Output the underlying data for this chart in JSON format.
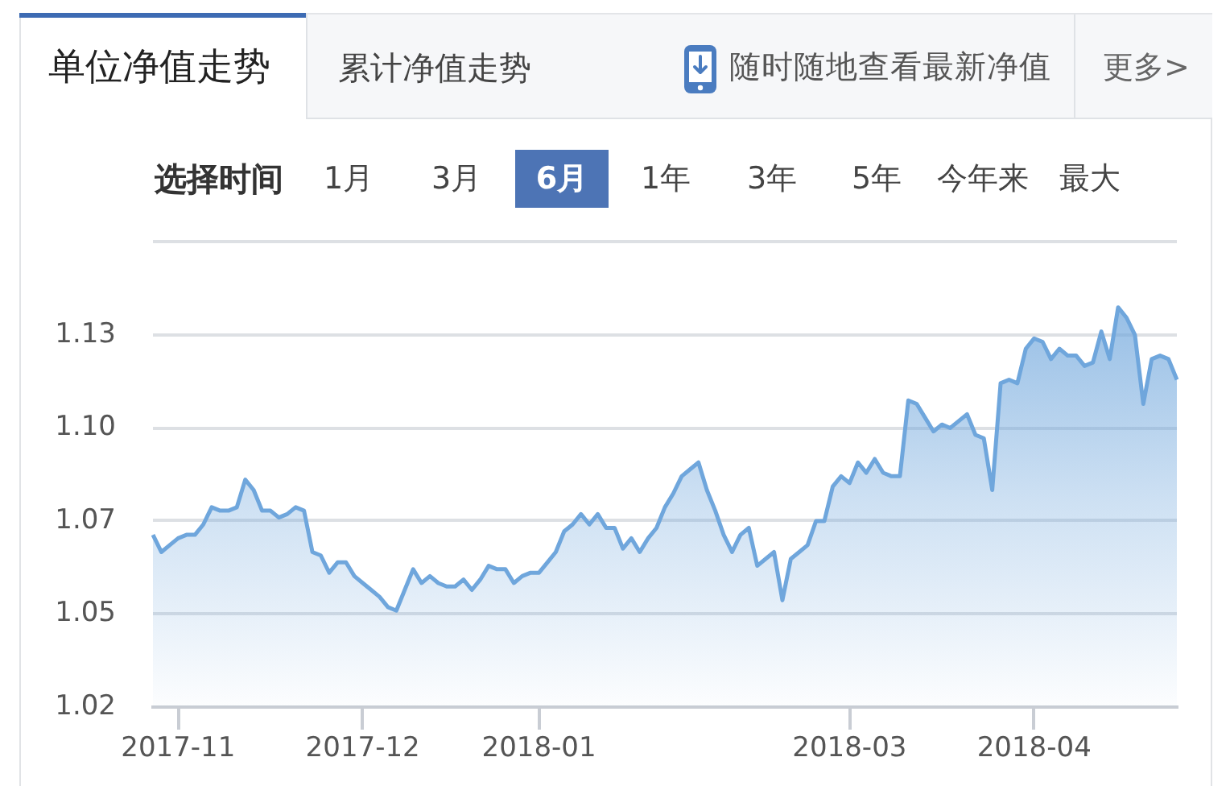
{
  "chart_data": {
    "type": "area",
    "title": "单位净值走势",
    "annotations": [
      "累计净值走势",
      "随时随地查看最新净值",
      "更多>",
      "选择时间",
      "1月",
      "3月",
      "6月",
      "1年",
      "3年",
      "5年",
      "今年来",
      "最大"
    ],
    "categories": [
      null,
      null,
      null,
      "2017-11",
      null,
      null,
      null,
      null,
      null,
      null,
      null,
      null,
      null,
      null,
      null,
      null,
      null,
      null,
      null,
      null,
      null,
      null,
      null,
      null,
      null,
      "2017-12",
      null,
      null,
      null,
      null,
      null,
      null,
      null,
      null,
      null,
      null,
      null,
      null,
      null,
      null,
      null,
      null,
      null,
      null,
      null,
      null,
      "2018-01",
      null,
      null,
      null,
      null,
      null,
      null,
      null,
      null,
      null,
      null,
      null,
      null,
      null,
      null,
      null,
      null,
      null,
      null,
      null,
      null,
      null,
      null,
      null,
      null,
      null,
      null,
      null,
      null,
      null,
      null,
      null,
      null,
      null,
      null,
      null,
      null,
      "2018-03",
      null,
      null,
      null,
      null,
      null,
      null,
      null,
      null,
      null,
      null,
      null,
      null,
      null,
      null,
      null,
      null,
      null,
      null,
      null,
      null,
      null,
      "2018-04",
      null,
      null,
      null,
      null,
      null,
      null,
      null,
      null,
      null,
      null,
      null,
      null,
      null,
      null,
      null,
      null,
      null
    ],
    "values": [
      1.07,
      1.065,
      1.067,
      1.069,
      1.07,
      1.07,
      1.073,
      1.078,
      1.077,
      1.077,
      1.078,
      1.086,
      1.083,
      1.077,
      1.077,
      1.075,
      1.076,
      1.078,
      1.077,
      1.065,
      1.064,
      1.059,
      1.062,
      1.062,
      1.058,
      1.056,
      1.054,
      1.052,
      1.049,
      1.048,
      1.054,
      1.06,
      1.056,
      1.058,
      1.056,
      1.055,
      1.055,
      1.057,
      1.054,
      1.057,
      1.061,
      1.06,
      1.06,
      1.056,
      1.058,
      1.059,
      1.059,
      1.062,
      1.065,
      1.071,
      1.073,
      1.076,
      1.073,
      1.076,
      1.072,
      1.072,
      1.066,
      1.069,
      1.065,
      1.069,
      1.072,
      1.078,
      1.082,
      1.087,
      1.089,
      1.091,
      1.083,
      1.077,
      1.07,
      1.065,
      1.07,
      1.072,
      1.061,
      1.063,
      1.065,
      1.051,
      1.063,
      1.065,
      1.067,
      1.074,
      1.074,
      1.084,
      1.087,
      1.085,
      1.091,
      1.088,
      1.092,
      1.088,
      1.087,
      1.087,
      1.109,
      1.108,
      1.104,
      1.1,
      1.102,
      1.101,
      1.103,
      1.105,
      1.099,
      1.098,
      1.083,
      1.114,
      1.115,
      1.114,
      1.124,
      1.127,
      1.126,
      1.121,
      1.124,
      1.122,
      1.122,
      1.119,
      1.12,
      1.129,
      1.121,
      1.136,
      1.133,
      1.128,
      1.108,
      1.121,
      1.122,
      1.121,
      1.115
    ],
    "color": "#6fa6dc",
    "ylim": [
      1.02,
      1.155
    ],
    "yticks": [
      {
        "value": 1.02,
        "label": "1.02"
      },
      {
        "value": 1.047,
        "label": "1.05"
      },
      {
        "value": 1.074,
        "label": "1.07"
      },
      {
        "value": 1.101,
        "label": "1.10"
      },
      {
        "value": 1.128,
        "label": "1.13"
      },
      {
        "value": 1.155,
        "label": null
      }
    ],
    "grid": "y",
    "marker": "none"
  }
}
